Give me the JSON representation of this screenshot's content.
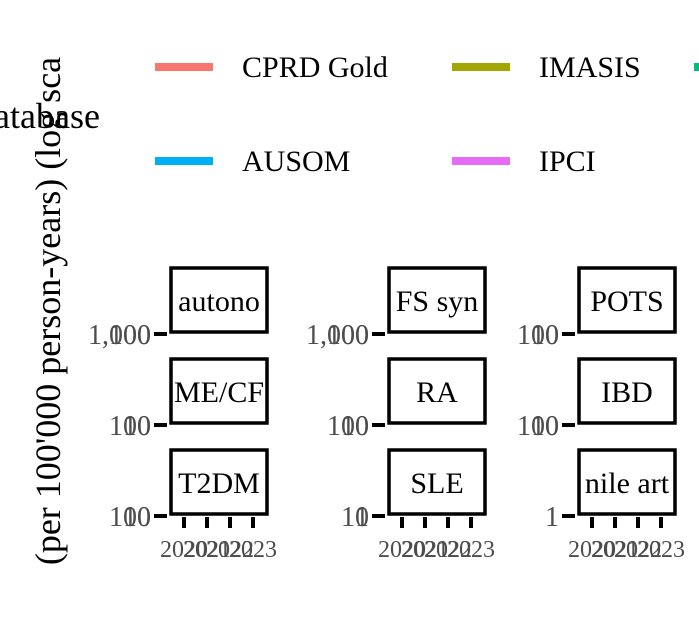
{
  "chart_data": {
    "type": "line",
    "ylabel": "(per 100'000 person-years) (log sca",
    "legend": {
      "title": "atabase",
      "placement": "top",
      "entries": [
        {
          "name": "CPRD Gold",
          "color": "#F8766D"
        },
        {
          "name": "IMASIS",
          "color": "#A3A500"
        },
        {
          "name": "",
          "color": "#00BF7D"
        },
        {
          "name": "AUSOM",
          "color": "#00B0F6"
        },
        {
          "name": "IPCI",
          "color": "#E76BF3"
        }
      ]
    },
    "x_ticks": [
      "2020",
      "2021",
      "2022",
      "2023"
    ],
    "log_y": true,
    "panels": [
      {
        "column": 0,
        "row": 0,
        "strip": "autono",
        "y_ticks": [
          "1,000",
          "100"
        ]
      },
      {
        "column": 0,
        "row": 1,
        "strip": "ME/CF",
        "y_ticks": [
          "100",
          "10"
        ]
      },
      {
        "column": 0,
        "row": 2,
        "strip": "T2DM",
        "y_ticks": [
          "100",
          "10"
        ]
      },
      {
        "column": 1,
        "row": 0,
        "strip": "FS syn",
        "y_ticks": [
          "1,000",
          "100"
        ]
      },
      {
        "column": 1,
        "row": 1,
        "strip": "RA",
        "y_ticks": [
          "100",
          "10"
        ]
      },
      {
        "column": 1,
        "row": 2,
        "strip": "SLE",
        "y_ticks": [
          "10",
          "1"
        ]
      },
      {
        "column": 2,
        "row": 0,
        "strip": "POTS",
        "y_ticks": [
          "100",
          "10"
        ]
      },
      {
        "column": 2,
        "row": 1,
        "strip": "IBD",
        "y_ticks": [
          "100",
          "10"
        ]
      },
      {
        "column": 2,
        "row": 2,
        "strip": "nile art",
        "y_ticks": [
          "1"
        ]
      }
    ]
  }
}
